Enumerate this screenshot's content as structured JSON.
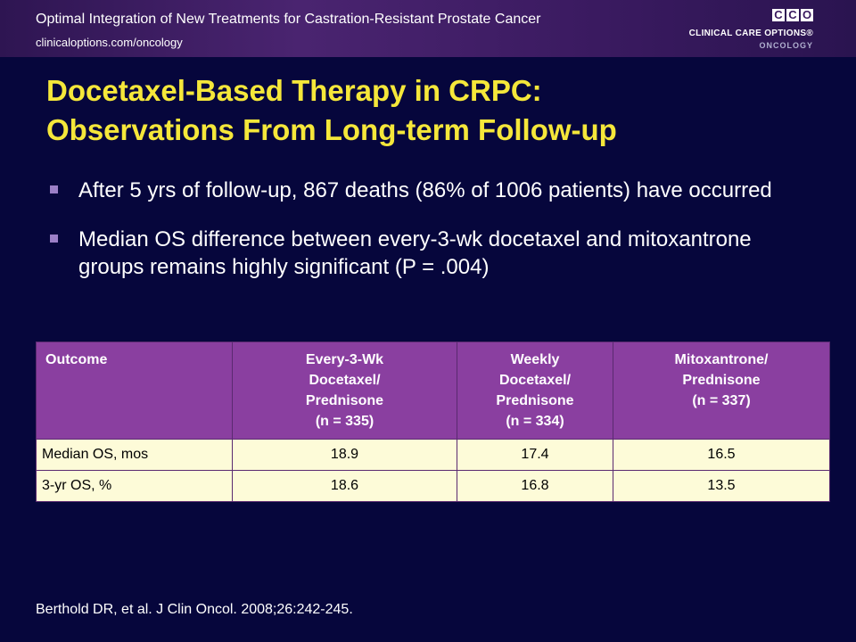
{
  "header": {
    "title": "Optimal Integration of New Treatments for Castration-Resistant Prostate Cancer",
    "url": "clinicaloptions.com/oncology"
  },
  "logo": {
    "letters": [
      "C",
      "C",
      "O"
    ],
    "name": "CLINICAL CARE OPTIONS®",
    "sub": "ONCOLOGY"
  },
  "slide": {
    "title_line1": "Docetaxel-Based Therapy in CRPC:",
    "title_line2": "Observations From Long-term Follow-up",
    "bullets": [
      "After 5 yrs of follow-up, 867 deaths (86% of 1006 patients) have occurred",
      "Median OS difference between every-3-wk docetaxel and mitoxantrone groups remains highly significant (P = .004)"
    ]
  },
  "table": {
    "headers": [
      [
        "Outcome"
      ],
      [
        "Every-3-Wk",
        "Docetaxel/",
        "Prednisone",
        "(n = 335)"
      ],
      [
        "Weekly",
        "Docetaxel/",
        "Prednisone",
        "(n = 334)"
      ],
      [
        "Mitoxantrone/",
        "Prednisone",
        "(n = 337)"
      ]
    ],
    "rows": [
      [
        "Median OS, mos",
        "18.9",
        "17.4",
        "16.5"
      ],
      [
        "3-yr OS, %",
        "18.6",
        "16.8",
        "13.5"
      ]
    ]
  },
  "citation": "Berthold DR, et al. J Clin Oncol. 2008;26:242-245."
}
